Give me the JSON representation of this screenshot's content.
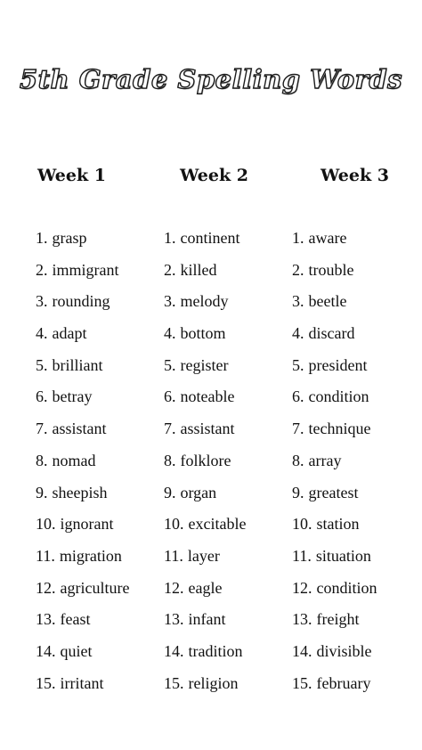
{
  "title": "5th Grade Spelling Words",
  "weeks": [
    {
      "label": "Week 1",
      "words": [
        {
          "num": "1.",
          "word": "grasp"
        },
        {
          "num": "2.",
          "word": "immigrant"
        },
        {
          "num": "3.",
          "word": "rounding"
        },
        {
          "num": "4.",
          "word": "adapt"
        },
        {
          "num": "5.",
          "word": "brilliant"
        },
        {
          "num": "6.",
          "word": "betray"
        },
        {
          "num": "7.",
          "word": "assistant"
        },
        {
          "num": "8.",
          "word": "nomad"
        },
        {
          "num": "9.",
          "word": "sheepish"
        },
        {
          "num": "10.",
          "word": "ignorant"
        },
        {
          "num": "11.",
          "word": "migration"
        },
        {
          "num": "12.",
          "word": "agriculture"
        },
        {
          "num": "13.",
          "word": "feast"
        },
        {
          "num": "14.",
          "word": "quiet"
        },
        {
          "num": "15.",
          "word": "irritant"
        }
      ]
    },
    {
      "label": "Week 2",
      "words": [
        {
          "num": "1.",
          "word": "continent"
        },
        {
          "num": "2.",
          "word": "killed"
        },
        {
          "num": "3.",
          "word": "melody"
        },
        {
          "num": "4.",
          "word": "bottom"
        },
        {
          "num": "5.",
          "word": "register"
        },
        {
          "num": "6.",
          "word": "noteable"
        },
        {
          "num": "7.",
          "word": "assistant"
        },
        {
          "num": "8.",
          "word": "folklore"
        },
        {
          "num": "9.",
          "word": "organ"
        },
        {
          "num": "10.",
          "word": "excitable"
        },
        {
          "num": "11.",
          "word": "layer"
        },
        {
          "num": "12.",
          "word": "eagle"
        },
        {
          "num": "13.",
          "word": "infant"
        },
        {
          "num": "14.",
          "word": "tradition"
        },
        {
          "num": "15.",
          "word": "religion"
        }
      ]
    },
    {
      "label": "Week 3",
      "words": [
        {
          "num": "1.",
          "word": "aware"
        },
        {
          "num": "2.",
          "word": "trouble"
        },
        {
          "num": "3.",
          "word": "beetle"
        },
        {
          "num": "4.",
          "word": "discard"
        },
        {
          "num": "5.",
          "word": "president"
        },
        {
          "num": "6.",
          "word": "condition"
        },
        {
          "num": "7.",
          "word": "technique"
        },
        {
          "num": "8.",
          "word": "array"
        },
        {
          "num": "9.",
          "word": "greatest"
        },
        {
          "num": "10.",
          "word": "station"
        },
        {
          "num": "11.",
          "word": "situation"
        },
        {
          "num": "12.",
          "word": "condition"
        },
        {
          "num": "13.",
          "word": "freight"
        },
        {
          "num": "14.",
          "word": "divisible"
        },
        {
          "num": "15.",
          "word": "february"
        }
      ]
    }
  ]
}
